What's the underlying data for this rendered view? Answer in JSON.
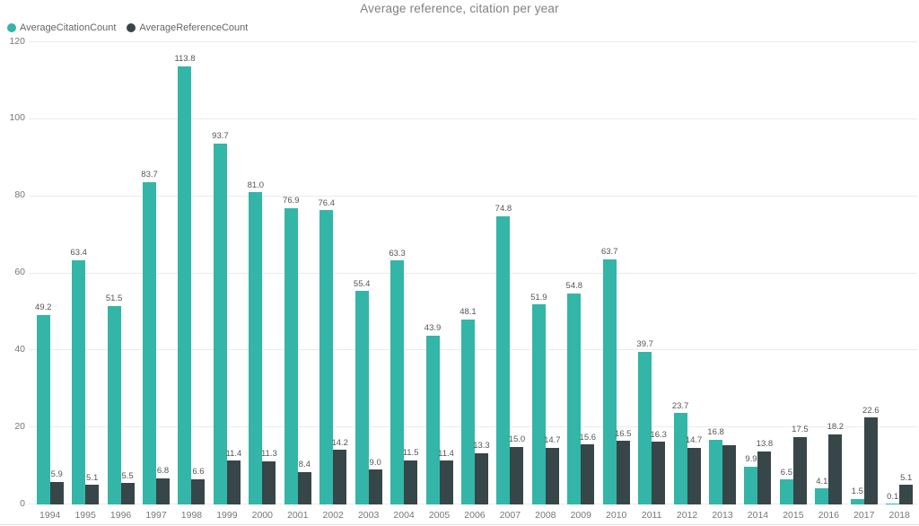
{
  "title": "Average reference, citation per year",
  "legend": {
    "items": [
      {
        "label": "AverageCitationCount",
        "color": "#33B6A7"
      },
      {
        "label": "AverageReferenceCount",
        "color": "#374649"
      }
    ]
  },
  "colors": {
    "citation": "#33B6A7",
    "reference": "#374649",
    "gridline": "#ebebeb",
    "axis_text": "#777777",
    "data_label_text": "#555555",
    "title_text": "#808080"
  },
  "chart_data": {
    "type": "bar",
    "title": "Average reference, citation per year",
    "xlabel": "",
    "ylabel": "",
    "grid": true,
    "legend_position": "top-left",
    "ylim": [
      0,
      120
    ],
    "yticks": [
      0,
      20,
      40,
      60,
      80,
      100,
      120
    ],
    "categories": [
      "1994",
      "1995",
      "1996",
      "1997",
      "1998",
      "1999",
      "2000",
      "2001",
      "2002",
      "2003",
      "2004",
      "2005",
      "2006",
      "2007",
      "2008",
      "2009",
      "2010",
      "2011",
      "2012",
      "2013",
      "2014",
      "2015",
      "2016",
      "2017",
      "2018"
    ],
    "series": [
      {
        "name": "AverageCitationCount",
        "color": "#33B6A7",
        "values": [
          49.2,
          63.4,
          51.5,
          83.7,
          113.8,
          93.7,
          81.0,
          76.9,
          76.4,
          55.4,
          63.3,
          43.9,
          48.1,
          74.8,
          51.9,
          54.8,
          63.7,
          39.7,
          23.7,
          16.8,
          9.9,
          6.5,
          4.1,
          1.5,
          0.1
        ]
      },
      {
        "name": "AverageReferenceCount",
        "color": "#374649",
        "values": [
          5.9,
          5.1,
          5.5,
          6.8,
          6.6,
          11.4,
          11.3,
          8.4,
          14.2,
          9.0,
          11.5,
          11.4,
          13.3,
          15.0,
          14.7,
          15.6,
          16.5,
          16.3,
          14.7,
          15.4,
          13.8,
          17.5,
          18.2,
          22.6,
          5.1
        ],
        "hidden_label_indices": [
          19
        ]
      }
    ]
  }
}
